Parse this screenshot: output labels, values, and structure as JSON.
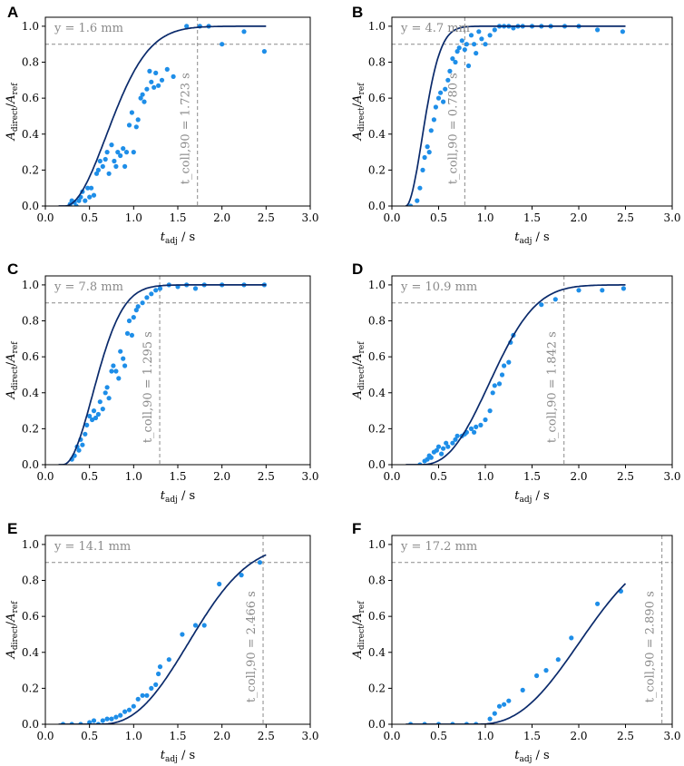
{
  "chart_data": [
    {
      "panel": "A",
      "type": "scatter",
      "y_label": "y = 1.6 mm",
      "t90": 1.723,
      "t90_label": "t_coll,90 = 1.723 s",
      "xlim": [
        0,
        3
      ],
      "ylim": [
        0,
        1.05
      ],
      "threshold": 0.9,
      "fit": {
        "t0": 0.22,
        "k": 1.5,
        "n": 2.0,
        "tmax": 2.5
      },
      "points": [
        [
          0.28,
          0.01
        ],
        [
          0.3,
          0.03
        ],
        [
          0.33,
          0.02
        ],
        [
          0.35,
          0.0
        ],
        [
          0.38,
          0.03
        ],
        [
          0.4,
          0.05
        ],
        [
          0.42,
          0.08
        ],
        [
          0.45,
          0.03
        ],
        [
          0.48,
          0.1
        ],
        [
          0.5,
          0.05
        ],
        [
          0.52,
          0.1
        ],
        [
          0.55,
          0.06
        ],
        [
          0.58,
          0.18
        ],
        [
          0.6,
          0.2
        ],
        [
          0.62,
          0.25
        ],
        [
          0.65,
          0.22
        ],
        [
          0.68,
          0.26
        ],
        [
          0.7,
          0.3
        ],
        [
          0.72,
          0.18
        ],
        [
          0.75,
          0.34
        ],
        [
          0.78,
          0.25
        ],
        [
          0.8,
          0.22
        ],
        [
          0.82,
          0.3
        ],
        [
          0.85,
          0.28
        ],
        [
          0.88,
          0.32
        ],
        [
          0.9,
          0.22
        ],
        [
          0.92,
          0.3
        ],
        [
          0.95,
          0.45
        ],
        [
          0.98,
          0.52
        ],
        [
          1.0,
          0.3
        ],
        [
          1.03,
          0.44
        ],
        [
          1.05,
          0.48
        ],
        [
          1.08,
          0.6
        ],
        [
          1.1,
          0.62
        ],
        [
          1.12,
          0.58
        ],
        [
          1.15,
          0.65
        ],
        [
          1.18,
          0.75
        ],
        [
          1.2,
          0.69
        ],
        [
          1.23,
          0.66
        ],
        [
          1.25,
          0.74
        ],
        [
          1.28,
          0.67
        ],
        [
          1.32,
          0.7
        ],
        [
          1.38,
          0.76
        ],
        [
          1.45,
          0.72
        ],
        [
          1.6,
          1.0
        ],
        [
          1.75,
          1.0
        ],
        [
          1.85,
          1.0
        ],
        [
          2.0,
          0.9
        ],
        [
          2.25,
          0.97
        ],
        [
          2.48,
          0.86
        ]
      ],
      "tick_labels_x": [
        "0.0",
        "0.5",
        "1.0",
        "1.5",
        "2.0",
        "2.5",
        "3.0"
      ],
      "tick_labels_y": [
        "0.0",
        "0.2",
        "0.4",
        "0.6",
        "0.8",
        "1.0"
      ]
    },
    {
      "panel": "B",
      "type": "scatter",
      "y_label": "y = 4.7 mm",
      "t90": 0.78,
      "t90_label": "t_coll,90 = 0.780 s",
      "xlim": [
        0,
        3
      ],
      "ylim": [
        0,
        1.05
      ],
      "threshold": 0.9,
      "fit": {
        "t0": 0.15,
        "k": 3.9,
        "n": 1.9,
        "tmax": 2.5
      },
      "points": [
        [
          0.2,
          0.0
        ],
        [
          0.27,
          0.03
        ],
        [
          0.3,
          0.1
        ],
        [
          0.33,
          0.2
        ],
        [
          0.35,
          0.27
        ],
        [
          0.38,
          0.33
        ],
        [
          0.4,
          0.3
        ],
        [
          0.42,
          0.42
        ],
        [
          0.45,
          0.48
        ],
        [
          0.47,
          0.55
        ],
        [
          0.5,
          0.6
        ],
        [
          0.52,
          0.63
        ],
        [
          0.55,
          0.58
        ],
        [
          0.57,
          0.65
        ],
        [
          0.6,
          0.7
        ],
        [
          0.62,
          0.75
        ],
        [
          0.65,
          0.82
        ],
        [
          0.68,
          0.8
        ],
        [
          0.7,
          0.86
        ],
        [
          0.72,
          0.88
        ],
        [
          0.75,
          0.92
        ],
        [
          0.78,
          0.87
        ],
        [
          0.8,
          0.9
        ],
        [
          0.82,
          0.78
        ],
        [
          0.85,
          0.95
        ],
        [
          0.88,
          0.9
        ],
        [
          0.9,
          0.85
        ],
        [
          0.93,
          0.97
        ],
        [
          0.96,
          0.93
        ],
        [
          1.0,
          0.9
        ],
        [
          1.05,
          0.95
        ],
        [
          1.1,
          0.98
        ],
        [
          1.15,
          1.0
        ],
        [
          1.2,
          1.0
        ],
        [
          1.25,
          1.0
        ],
        [
          1.3,
          0.99
        ],
        [
          1.35,
          1.0
        ],
        [
          1.4,
          1.0
        ],
        [
          1.5,
          1.0
        ],
        [
          1.6,
          1.0
        ],
        [
          1.7,
          1.0
        ],
        [
          1.85,
          1.0
        ],
        [
          2.0,
          1.0
        ],
        [
          2.2,
          0.98
        ],
        [
          2.47,
          0.97
        ]
      ],
      "tick_labels_x": [
        "0.0",
        "0.5",
        "1.0",
        "1.5",
        "2.0",
        "2.5",
        "3.0"
      ],
      "tick_labels_y": [
        "0.0",
        "0.2",
        "0.4",
        "0.6",
        "0.8",
        "1.0"
      ]
    },
    {
      "panel": "C",
      "type": "scatter",
      "y_label": "y = 7.8 mm",
      "t90": 1.295,
      "t90_label": "t_coll,90 = 1.295 s",
      "xlim": [
        0,
        3
      ],
      "ylim": [
        0,
        1.05
      ],
      "threshold": 0.9,
      "fit": {
        "t0": 0.2,
        "k": 2.1,
        "n": 2.0,
        "tmax": 2.5
      },
      "points": [
        [
          0.3,
          0.03
        ],
        [
          0.33,
          0.05
        ],
        [
          0.36,
          0.1
        ],
        [
          0.38,
          0.08
        ],
        [
          0.4,
          0.14
        ],
        [
          0.42,
          0.11
        ],
        [
          0.45,
          0.17
        ],
        [
          0.47,
          0.22
        ],
        [
          0.5,
          0.27
        ],
        [
          0.53,
          0.25
        ],
        [
          0.55,
          0.3
        ],
        [
          0.57,
          0.26
        ],
        [
          0.6,
          0.28
        ],
        [
          0.62,
          0.35
        ],
        [
          0.65,
          0.31
        ],
        [
          0.68,
          0.4
        ],
        [
          0.7,
          0.43
        ],
        [
          0.72,
          0.37
        ],
        [
          0.75,
          0.52
        ],
        [
          0.77,
          0.55
        ],
        [
          0.8,
          0.52
        ],
        [
          0.83,
          0.48
        ],
        [
          0.85,
          0.63
        ],
        [
          0.88,
          0.59
        ],
        [
          0.9,
          0.55
        ],
        [
          0.93,
          0.73
        ],
        [
          0.95,
          0.8
        ],
        [
          0.98,
          0.72
        ],
        [
          1.0,
          0.82
        ],
        [
          1.03,
          0.86
        ],
        [
          1.05,
          0.88
        ],
        [
          1.1,
          0.9
        ],
        [
          1.15,
          0.93
        ],
        [
          1.2,
          0.95
        ],
        [
          1.25,
          0.97
        ],
        [
          1.3,
          0.98
        ],
        [
          1.4,
          1.0
        ],
        [
          1.5,
          0.99
        ],
        [
          1.6,
          1.0
        ],
        [
          1.7,
          0.98
        ],
        [
          1.8,
          1.0
        ],
        [
          2.0,
          1.0
        ],
        [
          2.25,
          1.0
        ],
        [
          2.48,
          1.0
        ]
      ],
      "tick_labels_x": [
        "0.0",
        "0.5",
        "1.0",
        "1.5",
        "2.0",
        "2.5",
        "3.0"
      ],
      "tick_labels_y": [
        "0.0",
        "0.2",
        "0.4",
        "0.6",
        "0.8",
        "1.0"
      ]
    },
    {
      "panel": "D",
      "type": "scatter",
      "y_label": "y = 10.9 mm",
      "t90": 1.842,
      "t90_label": "t_coll,90 = 1.842 s",
      "xlim": [
        0,
        3
      ],
      "ylim": [
        0,
        1.05
      ],
      "threshold": 0.9,
      "fit": {
        "t0": 0.3,
        "k": 1.1,
        "n": 2.5,
        "tmax": 2.5
      },
      "points": [
        [
          0.3,
          0.0
        ],
        [
          0.35,
          0.02
        ],
        [
          0.38,
          0.03
        ],
        [
          0.4,
          0.05
        ],
        [
          0.42,
          0.04
        ],
        [
          0.45,
          0.07
        ],
        [
          0.48,
          0.08
        ],
        [
          0.5,
          0.1
        ],
        [
          0.53,
          0.06
        ],
        [
          0.55,
          0.09
        ],
        [
          0.58,
          0.12
        ],
        [
          0.6,
          0.1
        ],
        [
          0.65,
          0.12
        ],
        [
          0.68,
          0.14
        ],
        [
          0.7,
          0.16
        ],
        [
          0.75,
          0.16
        ],
        [
          0.78,
          0.17
        ],
        [
          0.8,
          0.18
        ],
        [
          0.85,
          0.2
        ],
        [
          0.88,
          0.18
        ],
        [
          0.9,
          0.21
        ],
        [
          0.95,
          0.22
        ],
        [
          1.0,
          0.25
        ],
        [
          1.05,
          0.3
        ],
        [
          1.08,
          0.4
        ],
        [
          1.1,
          0.44
        ],
        [
          1.15,
          0.45
        ],
        [
          1.18,
          0.5
        ],
        [
          1.2,
          0.55
        ],
        [
          1.25,
          0.57
        ],
        [
          1.27,
          0.68
        ],
        [
          1.3,
          0.72
        ],
        [
          1.6,
          0.89
        ],
        [
          1.75,
          0.92
        ],
        [
          2.0,
          0.97
        ],
        [
          2.25,
          0.97
        ],
        [
          2.48,
          0.98
        ]
      ],
      "tick_labels_x": [
        "0.0",
        "0.5",
        "1.0",
        "1.5",
        "2.0",
        "2.5",
        "3.0"
      ],
      "tick_labels_y": [
        "0.0",
        "0.2",
        "0.4",
        "0.6",
        "0.8",
        "1.0"
      ]
    },
    {
      "panel": "E",
      "type": "scatter",
      "y_label": "y = 14.1 mm",
      "t90": 2.466,
      "t90_label": "t_coll,90 = 2.466 s",
      "xlim": [
        0,
        3
      ],
      "ylim": [
        0,
        1.05
      ],
      "threshold": 0.9,
      "fit": {
        "t0": 0.6,
        "k": 0.8,
        "n": 2.5,
        "tmax": 2.5
      },
      "points": [
        [
          0.2,
          0.0
        ],
        [
          0.3,
          0.0
        ],
        [
          0.4,
          0.0
        ],
        [
          0.5,
          0.01
        ],
        [
          0.55,
          0.02
        ],
        [
          0.6,
          0.0
        ],
        [
          0.65,
          0.02
        ],
        [
          0.7,
          0.03
        ],
        [
          0.75,
          0.03
        ],
        [
          0.8,
          0.04
        ],
        [
          0.85,
          0.05
        ],
        [
          0.9,
          0.07
        ],
        [
          0.95,
          0.08
        ],
        [
          1.0,
          0.1
        ],
        [
          1.05,
          0.14
        ],
        [
          1.1,
          0.16
        ],
        [
          1.15,
          0.16
        ],
        [
          1.2,
          0.2
        ],
        [
          1.25,
          0.22
        ],
        [
          1.28,
          0.28
        ],
        [
          1.3,
          0.32
        ],
        [
          1.4,
          0.36
        ],
        [
          1.55,
          0.5
        ],
        [
          1.7,
          0.55
        ],
        [
          1.8,
          0.55
        ],
        [
          1.97,
          0.78
        ],
        [
          2.22,
          0.83
        ],
        [
          2.43,
          0.9
        ]
      ],
      "tick_labels_x": [
        "0.0",
        "0.5",
        "1.0",
        "1.5",
        "2.0",
        "2.5",
        "3.0"
      ],
      "tick_labels_y": [
        "0.0",
        "0.2",
        "0.4",
        "0.6",
        "0.8",
        "1.0"
      ]
    },
    {
      "panel": "F",
      "type": "scatter",
      "y_label": "y = 17.2 mm",
      "t90": 2.89,
      "t90_label": "t_coll,90 = 2.890 s",
      "xlim": [
        0,
        3
      ],
      "ylim": [
        0,
        1.05
      ],
      "threshold": 0.9,
      "fit": {
        "t0": 0.9,
        "k": 0.74,
        "n": 2.5,
        "tmax": 2.5
      },
      "points": [
        [
          0.2,
          0.0
        ],
        [
          0.35,
          0.0
        ],
        [
          0.5,
          0.0
        ],
        [
          0.65,
          0.0
        ],
        [
          0.8,
          0.0
        ],
        [
          0.9,
          0.0
        ],
        [
          1.05,
          0.03
        ],
        [
          1.1,
          0.06
        ],
        [
          1.15,
          0.1
        ],
        [
          1.2,
          0.11
        ],
        [
          1.25,
          0.13
        ],
        [
          1.4,
          0.19
        ],
        [
          1.55,
          0.27
        ],
        [
          1.65,
          0.3
        ],
        [
          1.78,
          0.36
        ],
        [
          1.92,
          0.48
        ],
        [
          2.2,
          0.67
        ],
        [
          2.45,
          0.74
        ]
      ],
      "tick_labels_x": [
        "0.0",
        "0.5",
        "1.0",
        "1.5",
        "2.0",
        "2.5",
        "3.0"
      ],
      "tick_labels_y": [
        "0.0",
        "0.2",
        "0.4",
        "0.6",
        "0.8",
        "1.0"
      ]
    }
  ],
  "axis_labels": {
    "x_main": "t",
    "x_sub": "adj",
    "x_unit": " / s",
    "y_num": "A",
    "y_num_sub": "direct",
    "y_den": "A",
    "y_den_sub": "ref",
    "y_slash": "/"
  },
  "colors": {
    "points": "#1e8ee8",
    "fit": "#0a2a6b",
    "ref": "#8a8a8a",
    "frame": "#000000"
  }
}
